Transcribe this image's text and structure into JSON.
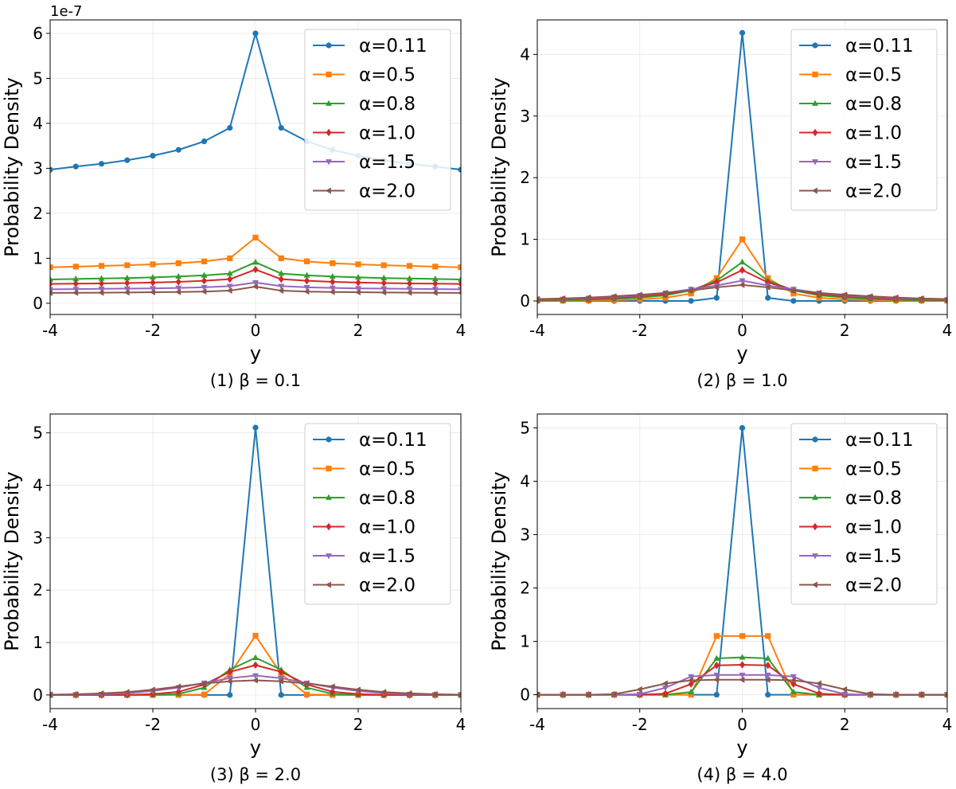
{
  "chart_data": [
    {
      "type": "line",
      "caption": "(1) β = 0.1",
      "xlabel": "y",
      "ylabel": "Probability Density",
      "xlim": [
        -4,
        4
      ],
      "ylim": [
        -2.5e-08,
        6.3e-07
      ],
      "xticks": [
        -4,
        -2,
        0,
        2,
        4
      ],
      "yticks": [
        0,
        1e-07,
        2e-07,
        3e-07,
        4e-07,
        5e-07,
        6e-07
      ],
      "ytick_labels": [
        "0",
        "1",
        "2",
        "3",
        "4",
        "5",
        "6"
      ],
      "y_offset_label": "1e-7",
      "grid": true,
      "legend": "upper right",
      "x": [
        -4,
        -3.5,
        -3,
        -2.5,
        -2,
        -1.5,
        -1,
        -0.5,
        0,
        0.5,
        1,
        1.5,
        2,
        2.5,
        3,
        3.5,
        4
      ],
      "series": [
        {
          "name": "α=0.11",
          "color": "#1f77b4",
          "marker": "circle",
          "values": [
            2.97e-07,
            3.04e-07,
            3.1e-07,
            3.18e-07,
            3.28e-07,
            3.41e-07,
            3.6e-07,
            3.9e-07,
            6e-07,
            3.9e-07,
            3.6e-07,
            3.41e-07,
            3.28e-07,
            3.18e-07,
            3.1e-07,
            3.04e-07,
            2.97e-07
          ]
        },
        {
          "name": "α=0.5",
          "color": "#ff7f0e",
          "marker": "square",
          "values": [
            8e-08,
            8.15e-08,
            8.3e-08,
            8.45e-08,
            8.65e-08,
            8.9e-08,
            9.3e-08,
            1e-07,
            1.46e-07,
            1e-07,
            9.3e-08,
            8.9e-08,
            8.65e-08,
            8.45e-08,
            8.3e-08,
            8.15e-08,
            8e-08
          ]
        },
        {
          "name": "α=0.8",
          "color": "#2ca02c",
          "marker": "triangle-up",
          "values": [
            5.3e-08,
            5.4e-08,
            5.5e-08,
            5.6e-08,
            5.75e-08,
            5.95e-08,
            6.2e-08,
            6.6e-08,
            9.1e-08,
            6.6e-08,
            6.2e-08,
            5.95e-08,
            5.75e-08,
            5.6e-08,
            5.5e-08,
            5.4e-08,
            5.3e-08
          ]
        },
        {
          "name": "α=1.0",
          "color": "#d62728",
          "marker": "diamond",
          "values": [
            4.3e-08,
            4.35e-08,
            4.4e-08,
            4.5e-08,
            4.6e-08,
            4.75e-08,
            5e-08,
            5.35e-08,
            7.5e-08,
            5.35e-08,
            5e-08,
            4.75e-08,
            4.6e-08,
            4.5e-08,
            4.4e-08,
            4.35e-08,
            4.3e-08
          ]
        },
        {
          "name": "α=1.5",
          "color": "#9467bd",
          "marker": "triangle-down",
          "values": [
            3.1e-08,
            3.15e-08,
            3.2e-08,
            3.25e-08,
            3.3e-08,
            3.4e-08,
            3.55e-08,
            3.8e-08,
            4.6e-08,
            3.8e-08,
            3.55e-08,
            3.4e-08,
            3.3e-08,
            3.25e-08,
            3.2e-08,
            3.15e-08,
            3.1e-08
          ]
        },
        {
          "name": "α=2.0",
          "color": "#8c564b",
          "marker": "triangle-left",
          "values": [
            2.3e-08,
            2.32e-08,
            2.35e-08,
            2.4e-08,
            2.45e-08,
            2.5e-08,
            2.6e-08,
            2.8e-08,
            3.7e-08,
            2.8e-08,
            2.6e-08,
            2.5e-08,
            2.45e-08,
            2.4e-08,
            2.35e-08,
            2.32e-08,
            2.3e-08
          ]
        }
      ]
    },
    {
      "type": "line",
      "caption": "(2) β = 1.0",
      "xlabel": "y",
      "ylabel": "Probability Density",
      "xlim": [
        -4,
        4
      ],
      "ylim": [
        -0.22,
        4.56
      ],
      "xticks": [
        -4,
        -2,
        0,
        2,
        4
      ],
      "yticks": [
        0,
        1,
        2,
        3,
        4
      ],
      "ytick_labels": [
        "0",
        "1",
        "2",
        "3",
        "4"
      ],
      "grid": true,
      "legend": "upper right",
      "x": [
        -4,
        -3.5,
        -3,
        -2.5,
        -2,
        -1.5,
        -1,
        -0.5,
        0,
        0.5,
        1,
        1.5,
        2,
        2.5,
        3,
        3.5,
        4
      ],
      "series": [
        {
          "name": "α=0.11",
          "color": "#1f77b4",
          "marker": "circle",
          "values": [
            0,
            0,
            0,
            0,
            0,
            0,
            0,
            0.05,
            4.35,
            0.05,
            0,
            0,
            0,
            0,
            0,
            0,
            0
          ]
        },
        {
          "name": "α=0.5",
          "color": "#ff7f0e",
          "marker": "square",
          "values": [
            0.003,
            0.005,
            0.008,
            0.014,
            0.025,
            0.05,
            0.12,
            0.37,
            1.0,
            0.37,
            0.12,
            0.05,
            0.025,
            0.014,
            0.008,
            0.005,
            0.003
          ]
        },
        {
          "name": "α=0.8",
          "color": "#2ca02c",
          "marker": "triangle-up",
          "values": [
            0.008,
            0.012,
            0.02,
            0.033,
            0.055,
            0.09,
            0.17,
            0.33,
            0.63,
            0.33,
            0.17,
            0.09,
            0.055,
            0.033,
            0.02,
            0.012,
            0.008
          ]
        },
        {
          "name": "α=1.0",
          "color": "#d62728",
          "marker": "diamond",
          "values": [
            0.016,
            0.022,
            0.033,
            0.05,
            0.075,
            0.11,
            0.18,
            0.3,
            0.5,
            0.3,
            0.18,
            0.11,
            0.075,
            0.05,
            0.033,
            0.022,
            0.016
          ]
        },
        {
          "name": "α=1.5",
          "color": "#9467bd",
          "marker": "triangle-down",
          "values": [
            0.022,
            0.03,
            0.045,
            0.065,
            0.09,
            0.13,
            0.19,
            0.25,
            0.33,
            0.25,
            0.19,
            0.13,
            0.09,
            0.065,
            0.045,
            0.03,
            0.022
          ]
        },
        {
          "name": "α=2.0",
          "color": "#8c564b",
          "marker": "triangle-left",
          "values": [
            0.03,
            0.04,
            0.055,
            0.075,
            0.1,
            0.13,
            0.17,
            0.22,
            0.26,
            0.22,
            0.17,
            0.13,
            0.1,
            0.075,
            0.055,
            0.04,
            0.03
          ]
        }
      ]
    },
    {
      "type": "line",
      "caption": "(3) β = 2.0",
      "xlabel": "y",
      "ylabel": "Probability Density",
      "xlim": [
        -4,
        4
      ],
      "ylim": [
        -0.26,
        5.36
      ],
      "xticks": [
        -4,
        -2,
        0,
        2,
        4
      ],
      "yticks": [
        0,
        1,
        2,
        3,
        4,
        5
      ],
      "ytick_labels": [
        "0",
        "1",
        "2",
        "3",
        "4",
        "5"
      ],
      "grid": true,
      "legend": "upper right",
      "x": [
        -4,
        -3.5,
        -3,
        -2.5,
        -2,
        -1.5,
        -1,
        -0.5,
        0,
        0.5,
        1,
        1.5,
        2,
        2.5,
        3,
        3.5,
        4
      ],
      "series": [
        {
          "name": "α=0.11",
          "color": "#1f77b4",
          "marker": "circle",
          "values": [
            0,
            0,
            0,
            0,
            0,
            0,
            0,
            0,
            5.1,
            0,
            0,
            0,
            0,
            0,
            0,
            0,
            0
          ]
        },
        {
          "name": "α=0.5",
          "color": "#ff7f0e",
          "marker": "square",
          "values": [
            0,
            0,
            0,
            0,
            0,
            0,
            0.01,
            0.4,
            1.13,
            0.4,
            0.01,
            0,
            0,
            0,
            0,
            0,
            0
          ]
        },
        {
          "name": "α=0.8",
          "color": "#2ca02c",
          "marker": "triangle-up",
          "values": [
            0,
            0,
            0,
            0,
            0,
            0.02,
            0.14,
            0.48,
            0.71,
            0.48,
            0.14,
            0.02,
            0,
            0,
            0,
            0,
            0
          ]
        },
        {
          "name": "α=1.0",
          "color": "#d62728",
          "marker": "diamond",
          "values": [
            0,
            0,
            0,
            0.003,
            0.018,
            0.06,
            0.2,
            0.44,
            0.57,
            0.44,
            0.2,
            0.06,
            0.018,
            0.003,
            0,
            0,
            0
          ]
        },
        {
          "name": "α=1.5",
          "color": "#9467bd",
          "marker": "triangle-down",
          "values": [
            0.002,
            0.006,
            0.015,
            0.035,
            0.075,
            0.14,
            0.23,
            0.32,
            0.37,
            0.32,
            0.23,
            0.14,
            0.075,
            0.035,
            0.015,
            0.006,
            0.002
          ]
        },
        {
          "name": "α=2.0",
          "color": "#8c564b",
          "marker": "triangle-left",
          "values": [
            0.006,
            0.014,
            0.03,
            0.055,
            0.1,
            0.16,
            0.22,
            0.26,
            0.28,
            0.26,
            0.22,
            0.16,
            0.1,
            0.055,
            0.03,
            0.014,
            0.006
          ]
        }
      ]
    },
    {
      "type": "line",
      "caption": "(4) β = 4.0",
      "xlabel": "y",
      "ylabel": "Probability Density",
      "xlim": [
        -4,
        4
      ],
      "ylim": [
        -0.26,
        5.26
      ],
      "xticks": [
        -4,
        -2,
        0,
        2,
        4
      ],
      "yticks": [
        0,
        1,
        2,
        3,
        4,
        5
      ],
      "ytick_labels": [
        "0",
        "1",
        "2",
        "3",
        "4",
        "5"
      ],
      "grid": true,
      "legend": "upper right",
      "x": [
        -4,
        -3.5,
        -3,
        -2.5,
        -2,
        -1.5,
        -1,
        -0.5,
        0,
        0.5,
        1,
        1.5,
        2,
        2.5,
        3,
        3.5,
        4
      ],
      "series": [
        {
          "name": "α=0.11",
          "color": "#1f77b4",
          "marker": "circle",
          "values": [
            0,
            0,
            0,
            0,
            0,
            0,
            0,
            0,
            5.0,
            0,
            0,
            0,
            0,
            0,
            0,
            0,
            0
          ]
        },
        {
          "name": "α=0.5",
          "color": "#ff7f0e",
          "marker": "square",
          "values": [
            0,
            0,
            0,
            0,
            0,
            0,
            0,
            1.1,
            1.1,
            1.1,
            0,
            0,
            0,
            0,
            0,
            0,
            0
          ]
        },
        {
          "name": "α=0.8",
          "color": "#2ca02c",
          "marker": "triangle-up",
          "values": [
            0,
            0,
            0,
            0,
            0,
            0,
            0.05,
            0.68,
            0.7,
            0.68,
            0.05,
            0,
            0,
            0,
            0,
            0,
            0
          ]
        },
        {
          "name": "α=1.0",
          "color": "#d62728",
          "marker": "diamond",
          "values": [
            0,
            0,
            0,
            0,
            0,
            0.02,
            0.2,
            0.55,
            0.56,
            0.55,
            0.2,
            0.02,
            0,
            0,
            0,
            0,
            0
          ]
        },
        {
          "name": "α=1.5",
          "color": "#9467bd",
          "marker": "triangle-down",
          "values": [
            0,
            0,
            0,
            0,
            0.01,
            0.13,
            0.34,
            0.37,
            0.37,
            0.37,
            0.34,
            0.13,
            0.01,
            0,
            0,
            0,
            0
          ]
        },
        {
          "name": "α=2.0",
          "color": "#8c564b",
          "marker": "triangle-left",
          "values": [
            0,
            0,
            0,
            0.01,
            0.1,
            0.21,
            0.27,
            0.28,
            0.28,
            0.28,
            0.27,
            0.21,
            0.1,
            0.01,
            0,
            0,
            0
          ]
        }
      ]
    }
  ]
}
